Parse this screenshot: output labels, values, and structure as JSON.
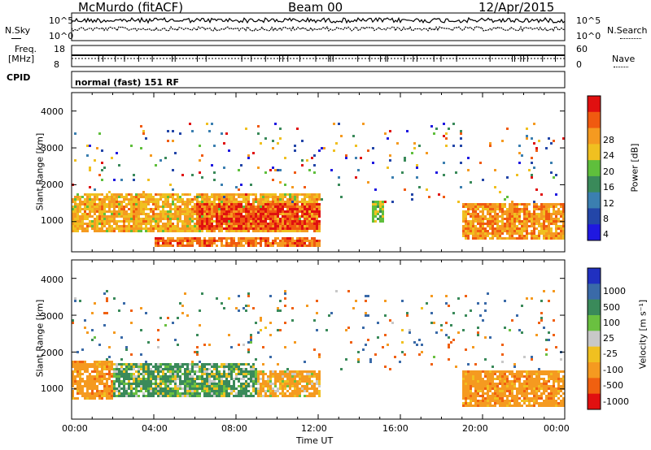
{
  "header": {
    "station": "McMurdo (fitACF)",
    "beam": "Beam 00",
    "date": "12/Apr/2015"
  },
  "noise_panel": {
    "left_label": "N.Sky",
    "right_label": "N.Search",
    "tick_top": "10^5",
    "tick_bottom": "10^0",
    "right_tick_top": "10^5",
    "right_tick_bottom": "10^0"
  },
  "freq_panel": {
    "left_label_1": "Freq.",
    "left_label_2": "[MHz]",
    "left_tick_top": "18",
    "left_tick_bottom": "8",
    "right_label": "Nave",
    "right_tick_top": "60",
    "right_tick_bottom": "0"
  },
  "cpid_panel": {
    "label": "CPID",
    "value": "normal (fast) 151 RF"
  },
  "axes": {
    "x_title": "Time UT",
    "x_ticks": [
      "00:00",
      "04:00",
      "08:00",
      "12:00",
      "16:00",
      "20:00",
      "00:00"
    ],
    "y_title": "Slant Range [km]",
    "y_ticks": [
      "1000",
      "2000",
      "3000",
      "4000"
    ]
  },
  "power_scale": {
    "title": "Power [dB]",
    "ticks": [
      "4",
      "8",
      "12",
      "16",
      "20",
      "24",
      "28"
    ],
    "colors": [
      "#1f18e0",
      "#2346a8",
      "#3b7fb0",
      "#3a8a5a",
      "#5fbf3c",
      "#f0c020",
      "#f59a20",
      "#f05a10",
      "#e01010"
    ]
  },
  "velocity_scale": {
    "title": "Velocity [m s⁻¹]",
    "ticks": [
      "1000",
      "500",
      "100",
      "25",
      "-25",
      "-100",
      "-500",
      "-1000"
    ],
    "colors": [
      "#2030c0",
      "#3a6aa8",
      "#3a8a5a",
      "#6ac040",
      "#c8c8c8",
      "#f0c020",
      "#f59a20",
      "#f06010",
      "#e01010"
    ]
  },
  "chart_data": [
    {
      "type": "heatmap",
      "title": "Power [dB]",
      "xlabel": "Time UT",
      "ylabel": "Slant Range [km]",
      "xlim": [
        0,
        24
      ],
      "ylim": [
        180,
        4500
      ],
      "zlim": [
        0,
        30
      ],
      "regions": [
        {
          "t": [
            0,
            12
          ],
          "range": [
            700,
            1750
          ],
          "value": 20
        },
        {
          "t": [
            6,
            12
          ],
          "range": [
            800,
            1500
          ],
          "value": 26
        },
        {
          "t": [
            4,
            12
          ],
          "range": [
            300,
            600
          ],
          "value": 24
        },
        {
          "t": [
            14.5,
            15.2
          ],
          "range": [
            1000,
            1600
          ],
          "value": 16
        },
        {
          "t": [
            19,
            24
          ],
          "range": [
            500,
            1500
          ],
          "value": 22
        }
      ]
    },
    {
      "type": "heatmap",
      "title": "Velocity [m s⁻¹]",
      "xlabel": "Time UT",
      "ylabel": "Slant Range [km]",
      "xlim": [
        0,
        24
      ],
      "ylim": [
        180,
        4500
      ],
      "zlim": [
        -1000,
        1000
      ],
      "regions": [
        {
          "t": [
            0,
            2
          ],
          "range": [
            700,
            1750
          ],
          "value": -300
        },
        {
          "t": [
            2,
            9
          ],
          "range": [
            800,
            1700
          ],
          "value": 150
        },
        {
          "t": [
            9,
            12
          ],
          "range": [
            800,
            1500
          ],
          "value": -200
        },
        {
          "t": [
            19,
            24
          ],
          "range": [
            500,
            1500
          ],
          "value": -300
        }
      ]
    }
  ]
}
